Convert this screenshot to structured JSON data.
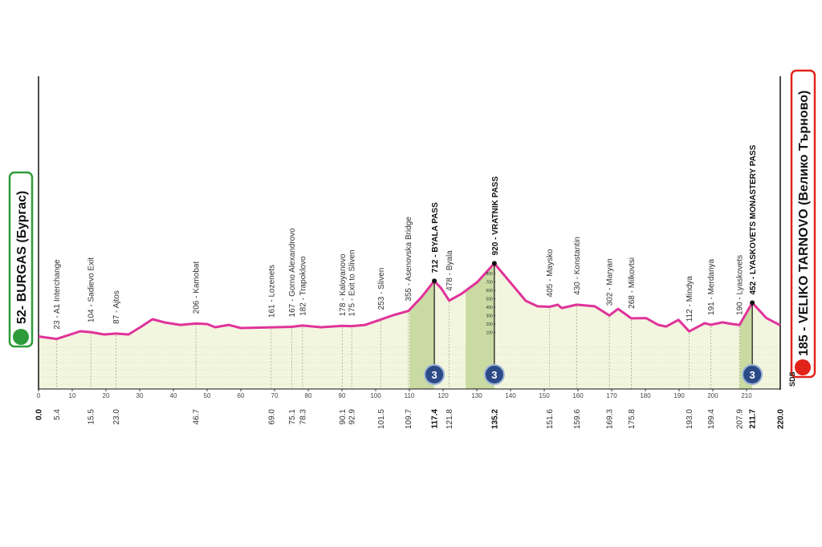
{
  "chart_data": {
    "type": "area",
    "start_label": "52- BURGAS (Бургас)",
    "finish_label": "185 - VELIKO TARNOVO (Велико Търново)",
    "logo": "SDS",
    "line_color": "#e0339a",
    "fill_color": "#f3f6df",
    "climb_color": "#c9daa2",
    "x": [
      0,
      5.4,
      12.4,
      15.5,
      19.5,
      23,
      26.7,
      30.2,
      33.8,
      37.4,
      42,
      46.7,
      50,
      52.4,
      56.4,
      60,
      69,
      75.1,
      78.3,
      83.8,
      90.1,
      92.9,
      96.9,
      101.5,
      105.2,
      109.7,
      113.6,
      117.4,
      119.5,
      121.8,
      125.5,
      130.2,
      135.2,
      139.8,
      144.5,
      148,
      151.6,
      154,
      155.2,
      159.6,
      165,
      169.3,
      171.9,
      175.8,
      180.2,
      183.8,
      186.2,
      189.8,
      193,
      197.6,
      199.4,
      202.9,
      205.7,
      207.9,
      211.7,
      215.9,
      220
    ],
    "values": [
      52,
      23,
      114,
      104,
      76,
      87,
      76,
      162,
      257,
      219,
      190,
      206,
      200,
      162,
      190,
      152,
      161,
      167,
      182,
      162,
      178,
      175,
      190,
      253,
      305,
      355,
      520,
      712,
      620,
      478,
      560,
      700,
      920,
      700,
      476,
      410,
      405,
      430,
      390,
      430,
      410,
      302,
      380,
      268,
      270,
      190,
      170,
      250,
      112,
      210,
      191,
      220,
      200,
      190,
      452,
      270,
      185
    ],
    "xlim": [
      0,
      220
    ],
    "xticks": [
      0,
      10,
      20,
      30,
      40,
      50,
      60,
      70,
      80,
      90,
      100,
      110,
      120,
      130,
      140,
      150,
      160,
      170,
      180,
      190,
      200,
      210
    ],
    "ylim": [
      0,
      800
    ],
    "yticks": [
      100,
      200,
      300,
      400,
      500,
      600,
      700,
      800
    ],
    "start_km": {
      "value": 0,
      "label": "0.0"
    },
    "finish_km": {
      "value": 220,
      "label": "220.0"
    },
    "waypoints": [
      {
        "km": 5.4,
        "label": "23 - A1 Interchange"
      },
      {
        "km": 15.5,
        "label": "104 - Sadievo Exit"
      },
      {
        "km": {
          "value": 23,
          "label": "23.0"
        },
        "label": "87 - Ajtos"
      },
      {
        "km": 46.7,
        "label": "206 - Kamobat"
      },
      {
        "km": {
          "value": 69,
          "label": "69.0"
        },
        "label": "161 - Lozenets"
      },
      {
        "km": 75.1,
        "label": "167 - Gorno Alexandrovo"
      },
      {
        "km": 78.3,
        "label": "182 - Trapoklovo"
      },
      {
        "km": 90.1,
        "label": "178 - Kaloyanovo"
      },
      {
        "km": 92.9,
        "label": "175 - Exit to Sliven"
      },
      {
        "km": 101.5,
        "label": "253 - Sliven"
      },
      {
        "km": 109.7,
        "label": "355 - Asenovska Bridge"
      },
      {
        "km": 121.8,
        "label": "478 - Byala"
      },
      {
        "km": 151.6,
        "label": "405 - Maysko"
      },
      {
        "km": 159.6,
        "label": "430 - Konstantin"
      },
      {
        "km": 169.3,
        "label": "302 - Maryan"
      },
      {
        "km": 175.8,
        "label": "268 - Milkovtsi"
      },
      {
        "km": {
          "value": 193,
          "label": "193.0"
        },
        "label": "112 - Mindya"
      },
      {
        "km": 199.4,
        "label": "191 - Merdanya"
      },
      {
        "km": 207.9,
        "label": "190 - Lyaskovets"
      }
    ],
    "climbs": [
      {
        "km": 117.4,
        "start": 110,
        "elevation": 712,
        "label": "712 - BYALA PASS",
        "category": "3"
      },
      {
        "km": 135.2,
        "start": 126.7,
        "elevation": 920,
        "label": "920 - VRATNIK PASS",
        "category": "3"
      },
      {
        "km": 211.7,
        "start": 208,
        "elevation": 452,
        "label": "452 - LYASKOVETS MONASTERY PASS",
        "category": "3"
      }
    ]
  }
}
